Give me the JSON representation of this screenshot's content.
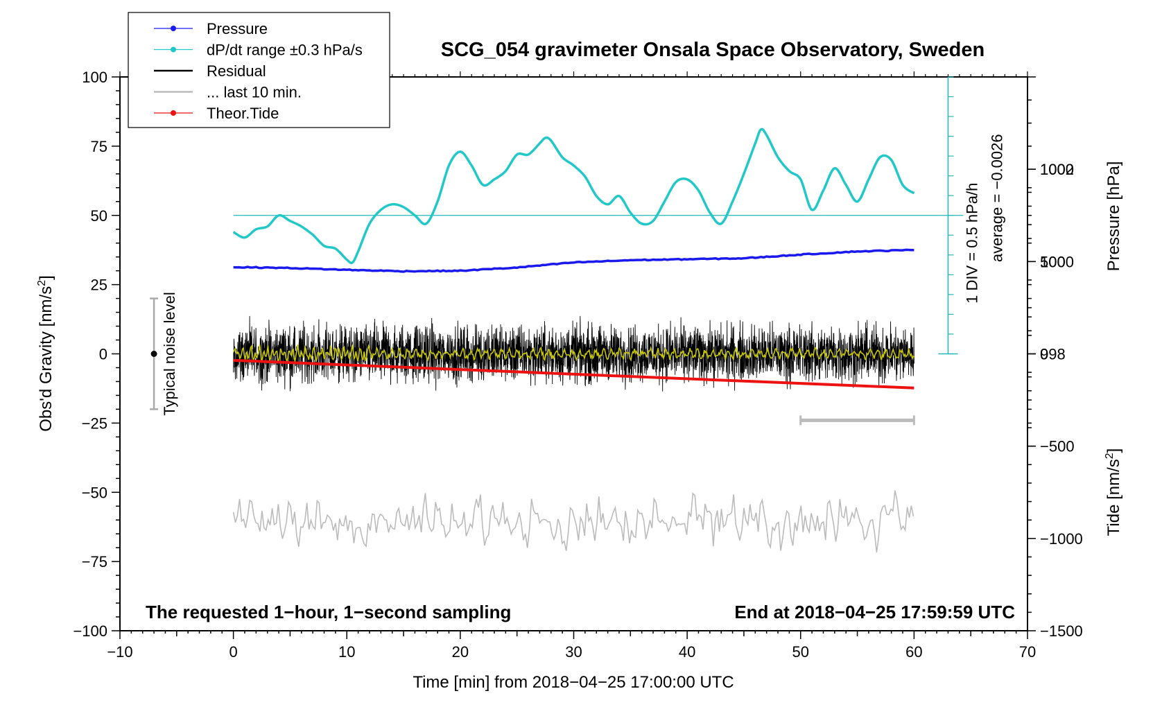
{
  "chart_data": {
    "type": "line",
    "title": "SCG_054 gravimeter Onsala Space Observatory, Sweden",
    "xlabel": "Time [min] from 2018−04−25 17:00:00 UTC",
    "ylabel_left_main": "Obs'd Gravity [nm/s",
    "ylabel_left_sup": "2",
    "ylabel_left_tail": "]",
    "ylabel_right_pressure": "Pressure [hPa]",
    "ylabel_right_tide_main": "Tide [nm/s",
    "ylabel_right_tide_sup": "2",
    "ylabel_right_tide_tail": "]",
    "xlim": [
      -10,
      70
    ],
    "ylim": [
      -100,
      100
    ],
    "pressure_lim": [
      992,
      1004
    ],
    "tide_lim": [
      -1500,
      1500
    ],
    "x_ticks": [
      {
        "v": -10,
        "label": "−10"
      },
      {
        "v": 0,
        "label": "0"
      },
      {
        "v": 10,
        "label": "10"
      },
      {
        "v": 20,
        "label": "20"
      },
      {
        "v": 30,
        "label": "30"
      },
      {
        "v": 40,
        "label": "40"
      },
      {
        "v": 50,
        "label": "50"
      },
      {
        "v": 60,
        "label": "60"
      },
      {
        "v": 70,
        "label": "70"
      }
    ],
    "y_ticks": [
      {
        "v": 100,
        "label": "100"
      },
      {
        "v": 75,
        "label": "75"
      },
      {
        "v": 50,
        "label": "50"
      },
      {
        "v": 25,
        "label": "25"
      },
      {
        "v": 0,
        "label": "0"
      },
      {
        "v": -25,
        "label": "−25"
      },
      {
        "v": -50,
        "label": "−50"
      },
      {
        "v": -75,
        "label": "−75"
      },
      {
        "v": -100,
        "label": "−100"
      }
    ],
    "pressure_ticks": [
      {
        "v": 1002,
        "label": "1002"
      },
      {
        "v": 1000,
        "label": "1000"
      },
      {
        "v": 998,
        "label": "998"
      }
    ],
    "tide_ticks": [
      {
        "v": 1000,
        "label": "1000"
      },
      {
        "v": 500,
        "label": "500"
      },
      {
        "v": 0,
        "label": "0"
      },
      {
        "v": -500,
        "label": "−500"
      },
      {
        "v": -1000,
        "label": "−1000"
      },
      {
        "v": -1500,
        "label": "−1500"
      }
    ],
    "legend": {
      "placement": "top-left",
      "entries": [
        {
          "label": "Pressure",
          "color": "#1a1aee",
          "marker": true
        },
        {
          "label": "dP/dt range ±0.3 hPa/s",
          "color": "#22c8c8",
          "marker": true
        },
        {
          "label": "Residual",
          "color": "#000000",
          "marker": false
        },
        {
          "label": "... last 10 min.",
          "color": "#bbbbbb",
          "marker": false
        },
        {
          "label": "Theor.Tide",
          "color": "#ee1111",
          "marker": true
        }
      ]
    },
    "series": [
      {
        "name": "Pressure",
        "color": "#1a1aee",
        "axis": "pressure",
        "x": [
          0,
          5,
          10,
          15,
          20,
          25,
          30,
          35,
          40,
          45,
          50,
          55,
          60
        ],
        "y": [
          999.88,
          999.86,
          999.82,
          999.79,
          999.8,
          999.87,
          999.98,
          1000.03,
          1000.05,
          1000.07,
          1000.15,
          1000.22,
          1000.25
        ]
      },
      {
        "name": "dP/dt range ±0.3 hPa/s",
        "color": "#22c8c8",
        "axis": "gravity",
        "x": [
          0,
          1,
          2,
          3,
          4,
          5,
          6,
          7,
          8,
          9,
          10,
          10.5,
          11,
          12,
          13,
          14,
          15,
          16,
          17,
          18,
          19,
          20,
          21,
          22,
          23,
          24,
          25,
          26,
          27,
          27.5,
          28,
          29,
          30,
          31,
          32,
          33,
          34,
          35,
          36,
          37,
          38,
          39,
          40,
          41,
          42,
          43,
          44,
          45,
          46,
          46.5,
          47,
          48,
          49,
          50,
          51,
          52,
          53,
          54,
          55,
          56,
          57,
          58,
          59,
          60
        ],
        "y": [
          44,
          42,
          45,
          46,
          50,
          48,
          46,
          43,
          39,
          38,
          34,
          33,
          37,
          47,
          52,
          54,
          53,
          50,
          47,
          55,
          68,
          73,
          68,
          61,
          63,
          66,
          72,
          72,
          76,
          78,
          77,
          71,
          68,
          64,
          57,
          54,
          57,
          51,
          47,
          48,
          55,
          62,
          63,
          59,
          51,
          47,
          55,
          65,
          76,
          81,
          79,
          71,
          66,
          63,
          52,
          59,
          67,
          61,
          55,
          63,
          71,
          70,
          61,
          58
        ]
      },
      {
        "name": "Residual",
        "color": "#000000",
        "axis": "gravity",
        "x_range": [
          0,
          60
        ],
        "y_center": 0,
        "y_amplitude": 11
      },
      {
        "name": "... last 10 min.",
        "color": "#bbbbbb",
        "axis": "gravity",
        "x_range": [
          0,
          60
        ],
        "y_center": -61,
        "y_amplitude": 12
      },
      {
        "name": "Theor.Tide",
        "color": "#ee1111",
        "axis": "tide",
        "x": [
          0,
          60
        ],
        "y": [
          -35,
          -185
        ]
      }
    ],
    "noise_bar": {
      "label": "Typical noise level",
      "x": -7,
      "y_center": 0,
      "y_half_range": 20
    },
    "rate_scale": {
      "label_main": "1 DIV = 0.5 hPa/h",
      "label_avg": "average = −0.0026",
      "x": 63,
      "baseline": 50,
      "top": 100,
      "bottom": 0,
      "divisions": 14
    },
    "ten_min_bar": {
      "x_start": 50,
      "x_end": 60,
      "y": -25
    },
    "footer_left": "The requested 1−hour, 1−second sampling",
    "footer_right": "End at 2018−04−25 17:59:59 UTC"
  }
}
